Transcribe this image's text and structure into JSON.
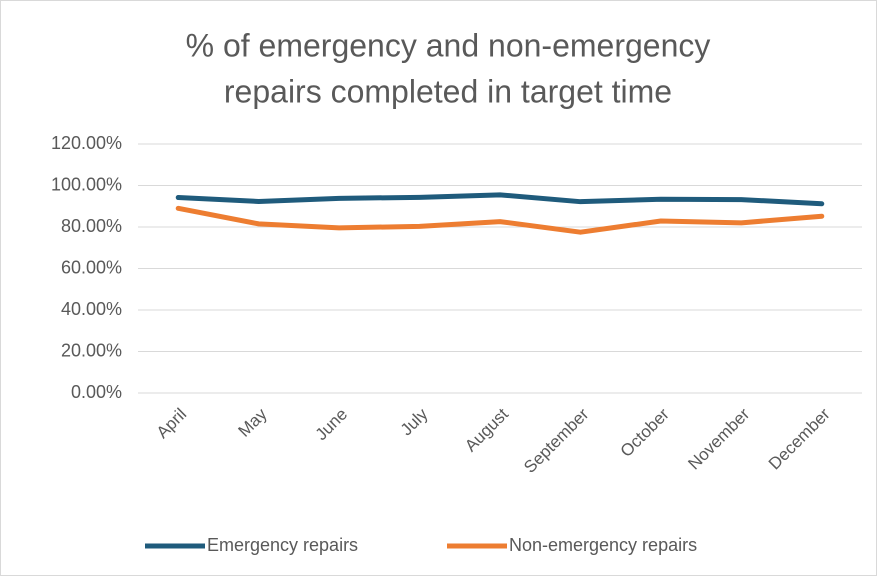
{
  "chart_data": {
    "type": "line",
    "title": [
      "% of emergency and non-emergency",
      "repairs completed in target time"
    ],
    "categories": [
      "April",
      "May",
      "June",
      "July",
      "August",
      "September",
      "October",
      "November",
      "December"
    ],
    "series": [
      {
        "name": "Emergency repairs",
        "color": "#1f5b7c",
        "values": [
          94.2,
          92.3,
          93.8,
          94.3,
          95.5,
          92.2,
          93.4,
          93.2,
          91.2
        ]
      },
      {
        "name": "Non-emergency repairs",
        "color": "#ed7d31",
        "values": [
          89.0,
          81.5,
          79.6,
          80.3,
          82.6,
          77.5,
          82.9,
          82.0,
          85.2
        ]
      }
    ],
    "ylim": [
      0,
      120
    ],
    "yticks": [
      {
        "value": 0,
        "label": "0.00%"
      },
      {
        "value": 20,
        "label": "20.00%"
      },
      {
        "value": 40,
        "label": "40.00%"
      },
      {
        "value": 60,
        "label": "60.00%"
      },
      {
        "value": 80,
        "label": "80.00%"
      },
      {
        "value": 100,
        "label": "100.00%"
      },
      {
        "value": 120,
        "label": "120.00%"
      }
    ],
    "grid": true,
    "legend": "bottom"
  }
}
